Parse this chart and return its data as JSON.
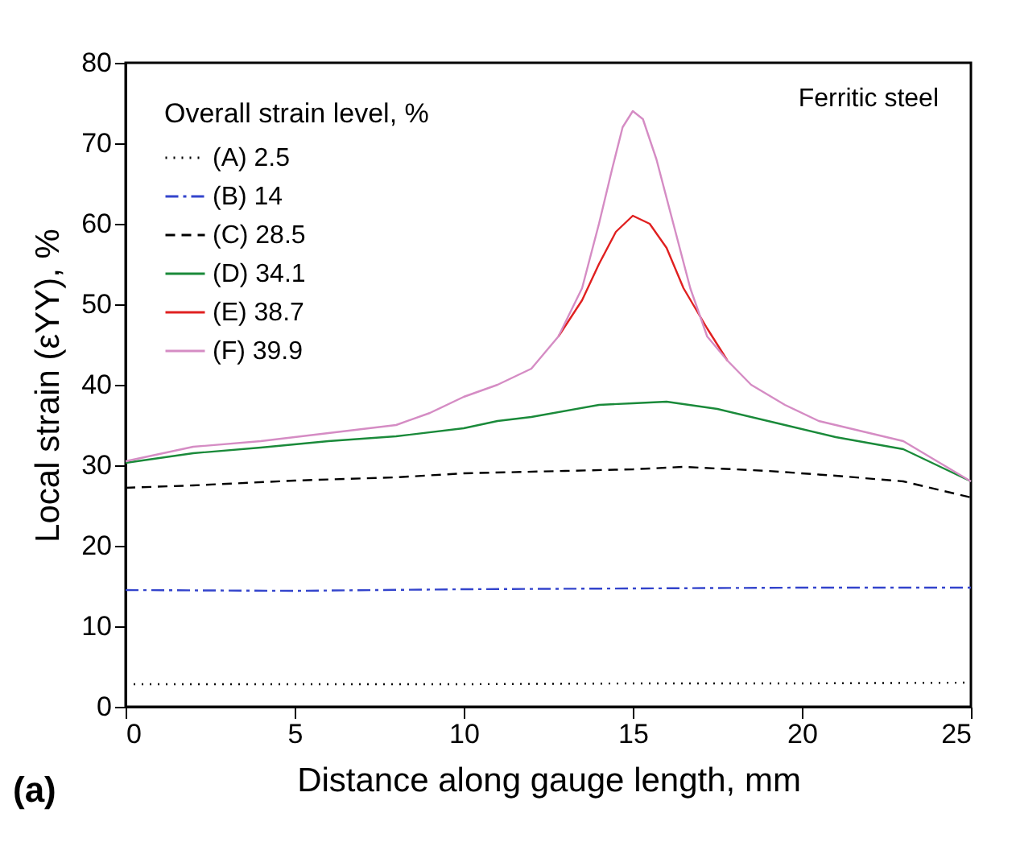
{
  "chart_data": {
    "type": "line",
    "xlabel": "Distance along gauge length, mm",
    "ylabel": "Local strain (εYY), %",
    "legend_title": "Overall strain level, %",
    "annotations": [
      "Ferritic steel",
      "(a)"
    ],
    "xlim": [
      0,
      25
    ],
    "xticks": [
      0,
      5,
      10,
      15,
      20,
      25
    ],
    "ylim": [
      0,
      80
    ],
    "yticks": [
      0,
      10,
      20,
      30,
      40,
      50,
      60,
      70,
      80
    ],
    "grid": false,
    "legend": "top left",
    "marker": "none",
    "series": [
      {
        "name": "(A) 2.5",
        "color": "#000000",
        "line_style": "dotted",
        "x": [
          0,
          5,
          10,
          15,
          20,
          25
        ],
        "values": [
          2.8,
          2.8,
          2.8,
          2.9,
          2.9,
          3.0
        ]
      },
      {
        "name": "(B) 14",
        "color": "#3344cc",
        "line_style": "dashdot",
        "x": [
          0,
          5,
          10,
          15,
          20,
          25
        ],
        "values": [
          14.5,
          14.4,
          14.6,
          14.7,
          14.8,
          14.8
        ]
      },
      {
        "name": "(C) 28.5",
        "color": "#000000",
        "line_style": "dashed",
        "x": [
          0,
          2,
          5,
          8,
          10,
          13,
          15,
          16.5,
          19,
          21,
          23,
          25
        ],
        "values": [
          27.2,
          27.5,
          28.1,
          28.5,
          29.0,
          29.3,
          29.5,
          29.8,
          29.3,
          28.7,
          28.0,
          26.0
        ]
      },
      {
        "name": "(D) 34.1",
        "color": "#1a8a3a",
        "line_style": "solid",
        "x": [
          0,
          2,
          4,
          6,
          8,
          10,
          11,
          12,
          14,
          15,
          16,
          17.5,
          19.5,
          21,
          23,
          25
        ],
        "values": [
          30.3,
          31.5,
          32.2,
          33.0,
          33.6,
          34.6,
          35.5,
          36.0,
          37.5,
          37.7,
          37.9,
          37.0,
          35.0,
          33.5,
          32.0,
          28.0
        ]
      },
      {
        "name": "(E) 38.7",
        "color": "#e02020",
        "line_style": "solid",
        "x": [
          12.8,
          13.5,
          14,
          14.5,
          15,
          15.5,
          16,
          16.5,
          17.2,
          17.8
        ],
        "values": [
          46.0,
          50.5,
          55.0,
          59.0,
          61.0,
          60.0,
          57.0,
          52.0,
          47.0,
          43.0
        ]
      },
      {
        "name": "(F) 39.9",
        "color": "#d58cc4",
        "line_style": "solid",
        "x": [
          0,
          2,
          4,
          6,
          8,
          9,
          10,
          11,
          12,
          12.8,
          13.5,
          14,
          14.4,
          14.7,
          15,
          15.3,
          15.7,
          16.2,
          16.7,
          17.2,
          17.8,
          18.5,
          19.5,
          20.5,
          21.5,
          23,
          24,
          25
        ],
        "values": [
          30.5,
          32.3,
          33.0,
          34.0,
          35.0,
          36.5,
          38.5,
          40.0,
          42.0,
          46.0,
          52.0,
          60.0,
          67.0,
          72.0,
          74.0,
          73.0,
          68.0,
          60.0,
          52.0,
          46.0,
          43.0,
          40.0,
          37.5,
          35.5,
          34.5,
          33.0,
          30.5,
          28.0
        ]
      }
    ]
  }
}
